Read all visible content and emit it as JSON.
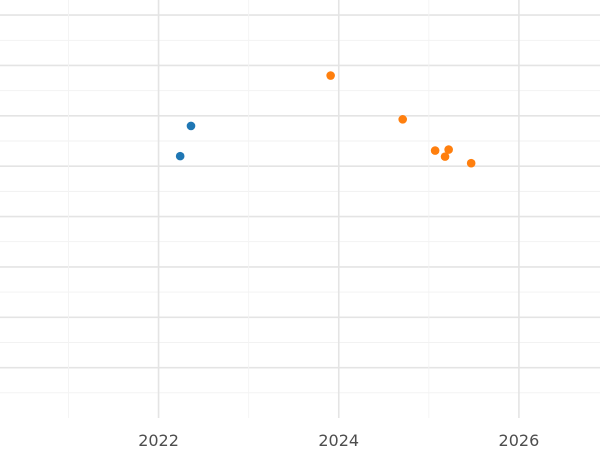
{
  "chart_data": {
    "type": "scatter",
    "title": "",
    "xlabel": "",
    "ylabel": "",
    "x_ticks": [
      "2022",
      "2024",
      "2026"
    ],
    "xlim": [
      2020.24,
      2026.9
    ],
    "ylim": [
      0,
      8.3
    ],
    "grid": true,
    "legend": "none",
    "series": [
      {
        "color": "#1f77b4",
        "points": [
          {
            "x": 2022.24,
            "y": 5.2
          },
          {
            "x": 2022.36,
            "y": 5.8
          }
        ]
      },
      {
        "color": "#ff7f0e",
        "points": [
          {
            "x": 2023.91,
            "y": 6.8
          },
          {
            "x": 2024.71,
            "y": 5.93
          },
          {
            "x": 2025.07,
            "y": 5.31
          },
          {
            "x": 2025.18,
            "y": 5.19
          },
          {
            "x": 2025.22,
            "y": 5.33
          },
          {
            "x": 2025.47,
            "y": 5.06
          }
        ]
      }
    ]
  }
}
